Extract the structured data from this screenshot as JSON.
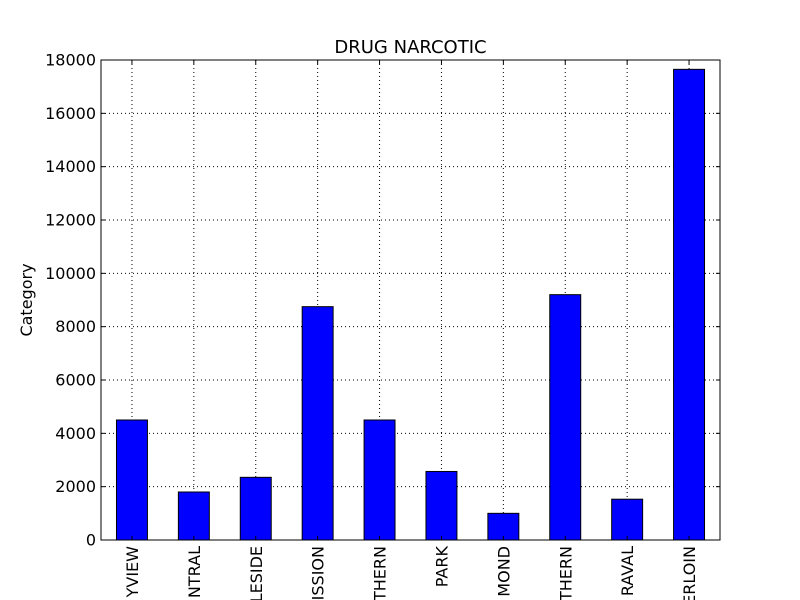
{
  "chart_data": {
    "type": "bar",
    "title": "DRUG NARCOTIC",
    "xlabel": "",
    "ylabel": "Category",
    "ylim": [
      0,
      18000
    ],
    "yticks": [
      0,
      2000,
      4000,
      6000,
      8000,
      10000,
      12000,
      14000,
      16000,
      18000
    ],
    "ytick_labels": [
      "0",
      "2000",
      "4000",
      "6000",
      "8000",
      "10000",
      "12000",
      "14000",
      "16000",
      "18000"
    ],
    "categories": [
      "YVIEW",
      "NTRAL",
      "LESIDE",
      "ISSION",
      "THERN",
      "PARK",
      "MOND",
      "THERN",
      "RAVAL",
      "ERLOIN"
    ],
    "values": [
      4500,
      1800,
      2350,
      8750,
      4500,
      2570,
      1000,
      9200,
      1530,
      17650
    ],
    "grid": true,
    "colors": {
      "bar_fill": "#0000ff",
      "bar_edge": "#000000",
      "grid": "#000000"
    }
  }
}
